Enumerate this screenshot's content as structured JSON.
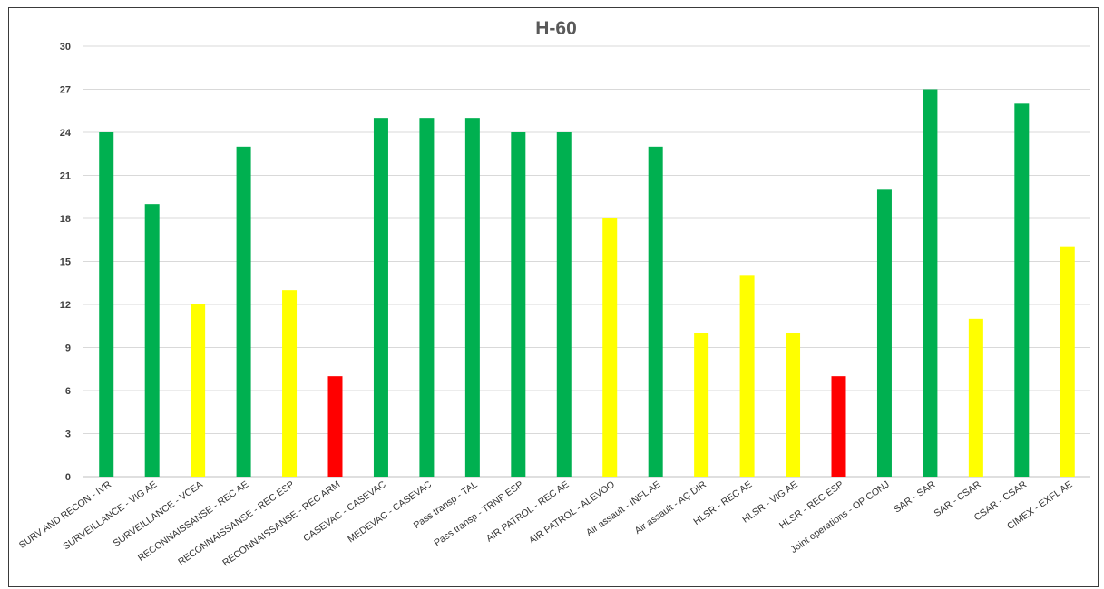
{
  "chart_data": {
    "type": "bar",
    "title": "H-60",
    "xlabel": "",
    "ylabel": "",
    "ylim": [
      0,
      30
    ],
    "yticks": [
      0,
      3,
      6,
      9,
      12,
      15,
      18,
      21,
      24,
      27,
      30
    ],
    "grid": true,
    "legend": "none",
    "categories": [
      "SURV AND RECON - IVR",
      "SURVEILLANCE - VIG AE",
      "SURVEILLANCE - VCEA",
      "RECONNAISSANSE - REC AE",
      "RECONNAISSANSE - REC ESP",
      "RECONNAISSANSE - REC ARM",
      "CASEVAC - CASEVAC",
      "MEDEVAC - CASEVAC",
      "Pass transp - TAL",
      "Pass transp - TRNP ESP",
      "AIR PATROL - REC AE",
      "AIR PATROL - ALEVOO",
      "Air assault - INFL AE",
      "Air assault - AÇ DIR",
      "HLSR - REC AE",
      "HLSR - VIG AE",
      "HLSR - REC ESP",
      "Joint operations - OP CONJ",
      "SAR - SAR",
      "SAR - CSAR",
      "CSAR - CSAR",
      "CIMEX - EXFL AE"
    ],
    "values": [
      24,
      19,
      12,
      23,
      13,
      7,
      25,
      25,
      25,
      24,
      24,
      18,
      23,
      10,
      14,
      10,
      7,
      20,
      27,
      11,
      26,
      16
    ],
    "bar_colors": [
      "#00b050",
      "#00b050",
      "#ffff00",
      "#00b050",
      "#ffff00",
      "#ff0000",
      "#00b050",
      "#00b050",
      "#00b050",
      "#00b050",
      "#00b050",
      "#ffff00",
      "#00b050",
      "#ffff00",
      "#ffff00",
      "#ffff00",
      "#ff0000",
      "#00b050",
      "#00b050",
      "#ffff00",
      "#00b050",
      "#ffff00"
    ]
  }
}
